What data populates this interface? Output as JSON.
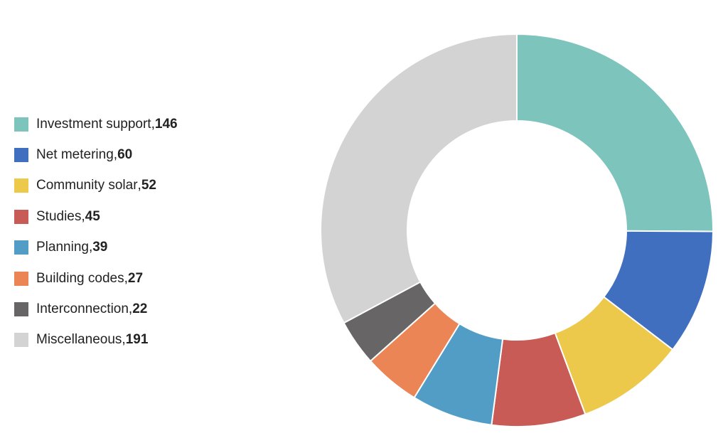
{
  "chart_data": {
    "type": "pie",
    "donut": true,
    "title": "",
    "legend_position": "left",
    "categories": [
      "Investment support",
      "Net metering",
      "Community solar",
      "Studies",
      "Planning",
      "Building codes",
      "Interconnection",
      "Miscellaneous"
    ],
    "values": [
      146,
      60,
      52,
      45,
      39,
      27,
      22,
      191
    ],
    "colors": [
      "#7dc4bc",
      "#3f6fbe",
      "#ecc94b",
      "#c95b56",
      "#529dc5",
      "#ec8556",
      "#676565",
      "#d3d3d3"
    ]
  }
}
